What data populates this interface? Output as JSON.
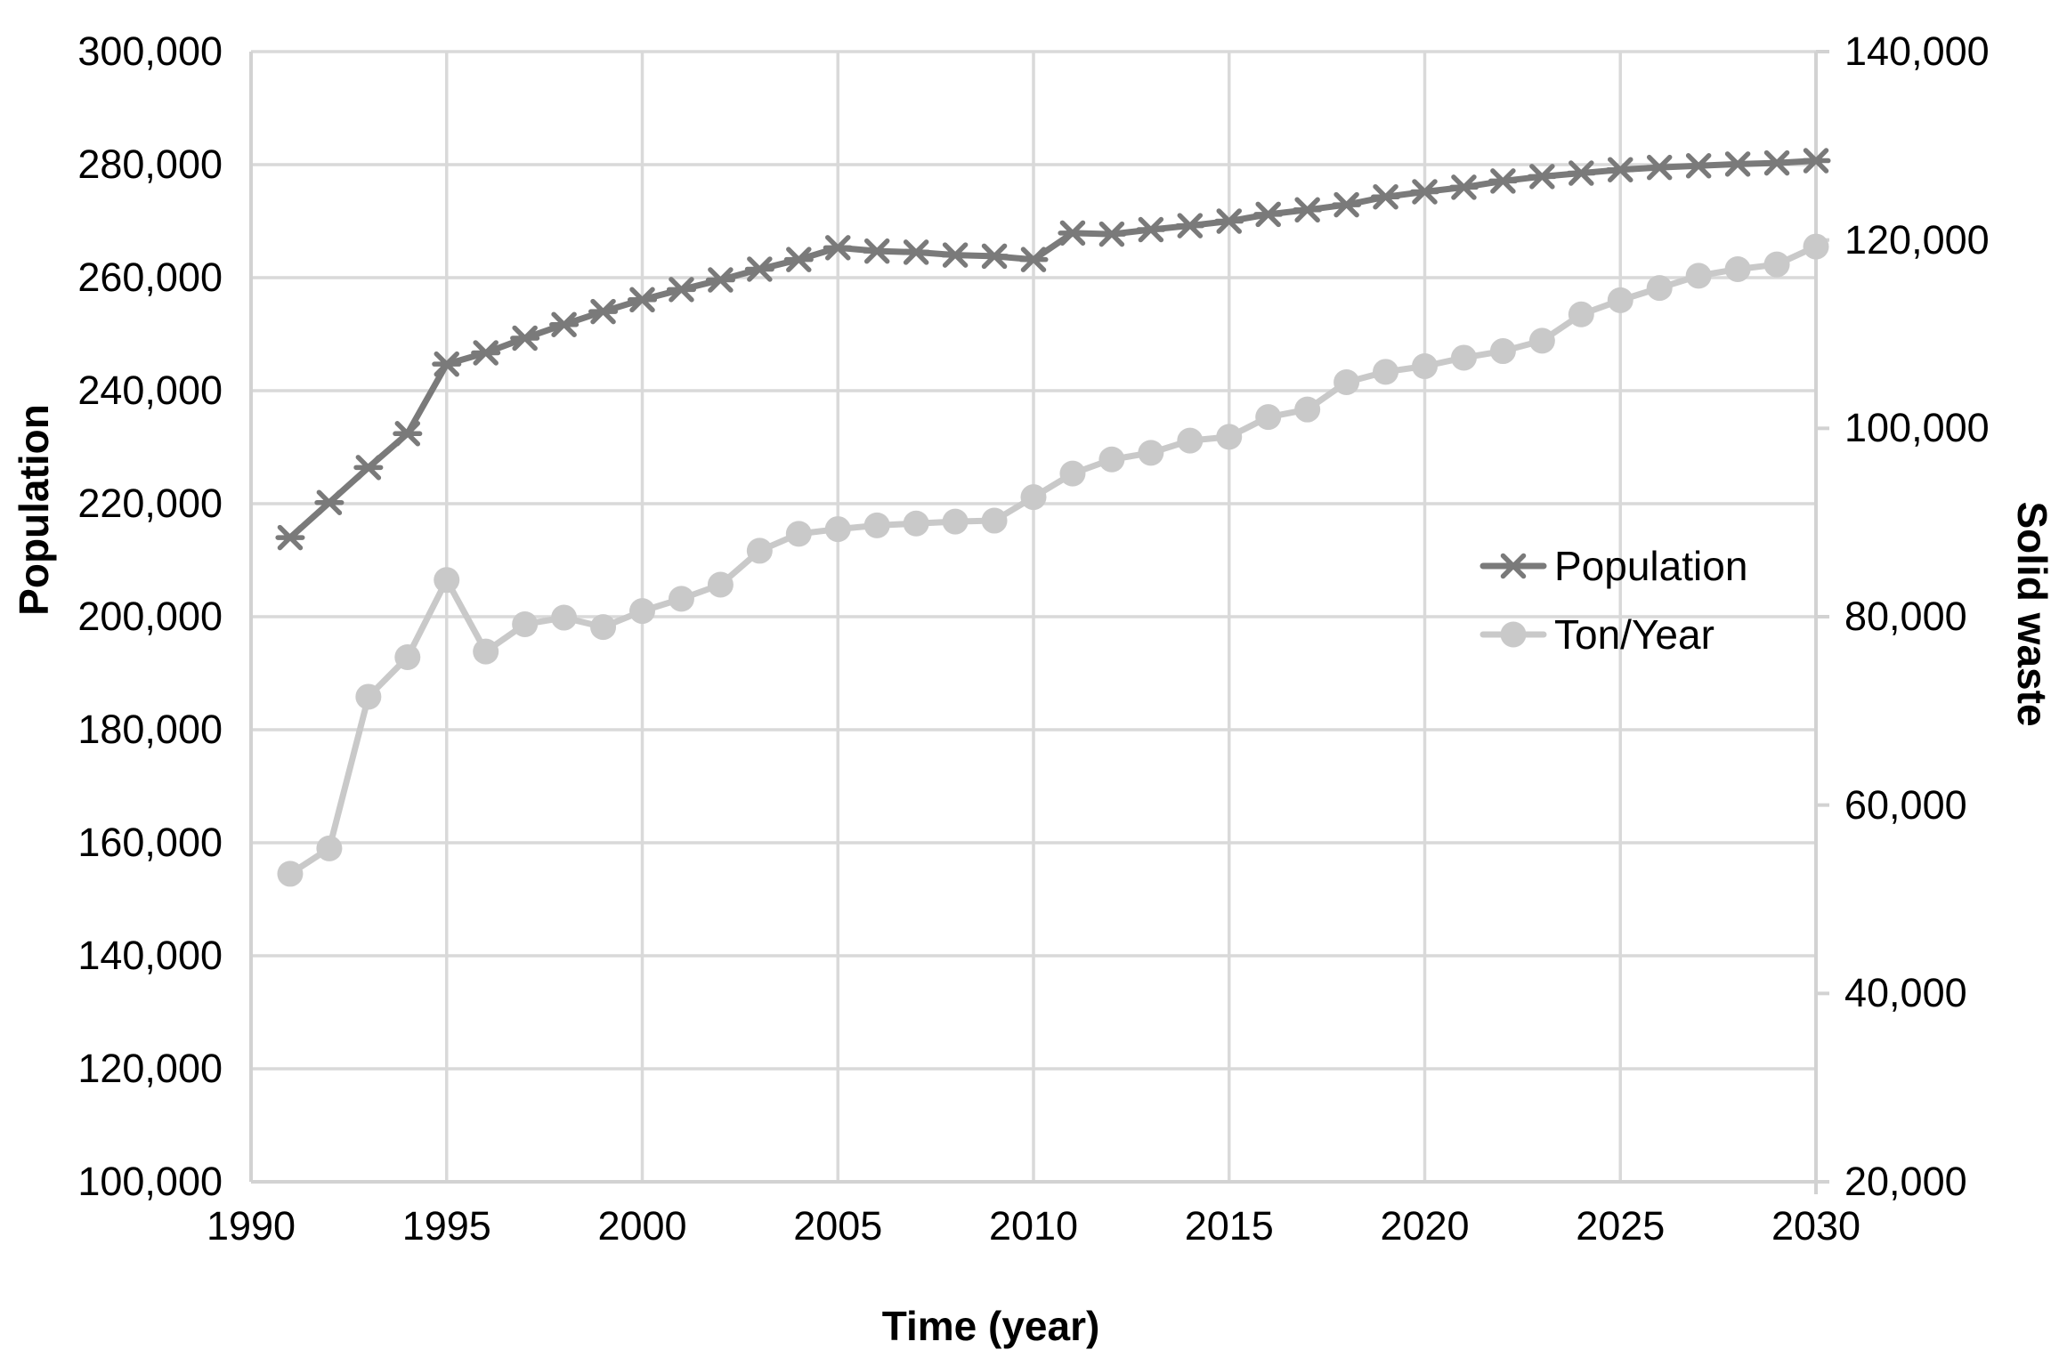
{
  "chart_data": {
    "type": "line",
    "title": "",
    "xlabel": "Time (year)",
    "ylabel_left": "Population",
    "ylabel_right": "Solid waste",
    "grid": true,
    "legend_position": "center-right-inside",
    "x": [
      1991,
      1992,
      1993,
      1994,
      1995,
      1996,
      1997,
      1998,
      1999,
      2000,
      2001,
      2002,
      2003,
      2004,
      2005,
      2006,
      2007,
      2008,
      2009,
      2010,
      2011,
      2012,
      2013,
      2014,
      2015,
      2016,
      2017,
      2018,
      2019,
      2020,
      2021,
      2022,
      2023,
      2024,
      2025,
      2026,
      2027,
      2028,
      2029,
      2030
    ],
    "series": [
      {
        "name": "Population",
        "axis": "left",
        "color": "#7a7a7a",
        "marker": "asterisk",
        "values": [
          214000,
          220200,
          226400,
          232400,
          244700,
          246700,
          249300,
          251700,
          254000,
          256100,
          257900,
          259600,
          261500,
          263200,
          265300,
          264700,
          264500,
          264000,
          263800,
          263200,
          267900,
          267700,
          268500,
          269200,
          270000,
          271200,
          272000,
          272900,
          274300,
          275200,
          276000,
          277100,
          277900,
          278500,
          279100,
          279500,
          279800,
          280100,
          280300,
          280700
        ]
      },
      {
        "name": "Ton/Year",
        "axis": "right",
        "color": "#c9c9c9",
        "marker": "circle",
        "values": [
          52700,
          55400,
          71500,
          75700,
          83900,
          76300,
          79200,
          79900,
          78900,
          80600,
          81900,
          83400,
          87000,
          88800,
          89300,
          89700,
          89900,
          90100,
          90200,
          92700,
          95200,
          96700,
          97400,
          98700,
          99100,
          101200,
          102000,
          104900,
          106000,
          106600,
          107500,
          108200,
          109300,
          112100,
          113600,
          114900,
          116200,
          116900,
          117400,
          119300
        ]
      }
    ],
    "x_axis": {
      "min": 1990,
      "max": 2030,
      "tick_step": 5,
      "tick_labels": [
        "1990",
        "1995",
        "2000",
        "2005",
        "2010",
        "2015",
        "2020",
        "2025",
        "2030"
      ]
    },
    "left_axis": {
      "min": 100000,
      "max": 300000,
      "step": 20000,
      "tick_labels": [
        "300,000",
        "280,000",
        "260,000",
        "240,000",
        "220,000",
        "200,000",
        "180,000",
        "160,000",
        "140,000",
        "120,000",
        "100,000"
      ]
    },
    "right_axis": {
      "min": 20000,
      "max": 140000,
      "step": 20000,
      "tick_labels": [
        "140,000",
        "120,000",
        "100,000",
        "80,000",
        "60,000",
        "40,000",
        "20,000"
      ]
    }
  },
  "colors": {
    "background": "#ffffff",
    "gridline": "#d9d9d9",
    "axis_line": "#d2d2d2",
    "text": "#000000",
    "population_series": "#7a7a7a",
    "ton_year_series": "#c9c9c9"
  },
  "legend": {
    "entries": [
      {
        "label": "Population"
      },
      {
        "label": "Ton/Year"
      }
    ]
  }
}
